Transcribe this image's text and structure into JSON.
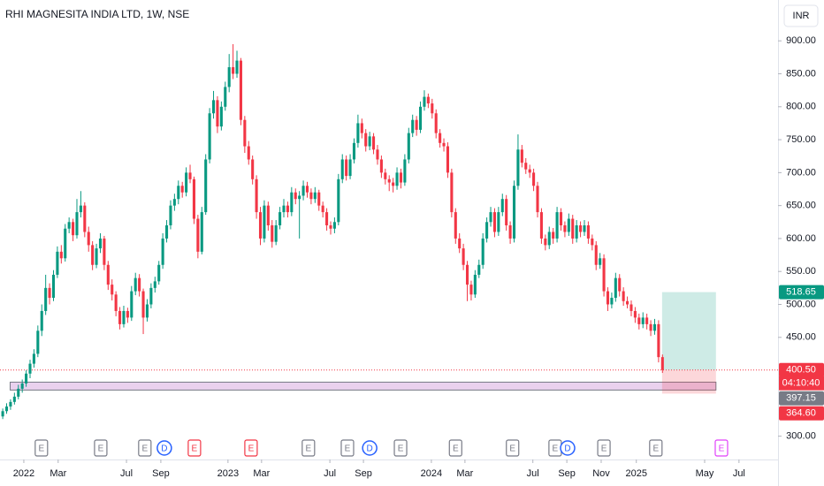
{
  "chart_data": {
    "type": "candlestick",
    "title": "RHI MAGNESITA INDIA LTD, 1W, NSE",
    "currency": "INR",
    "up_color": "#089981",
    "down_color": "#f23645",
    "grid": false,
    "ylim": [
      270,
      962
    ],
    "yticks": [
      {
        "value": 300,
        "label": "300.00"
      },
      {
        "value": 450,
        "label": "450.00"
      },
      {
        "value": 500,
        "label": "500.00"
      },
      {
        "value": 550,
        "label": "550.00"
      },
      {
        "value": 600,
        "label": "600.00"
      },
      {
        "value": 650,
        "label": "650.00"
      },
      {
        "value": 700,
        "label": "700.00"
      },
      {
        "value": 750,
        "label": "750.00"
      },
      {
        "value": 800,
        "label": "800.00"
      },
      {
        "value": 850,
        "label": "850.00"
      },
      {
        "value": 900,
        "label": "900.00"
      }
    ],
    "xlim": [
      -0.7,
      198.6
    ],
    "xticks": [
      {
        "value": 5.4,
        "label": "2022"
      },
      {
        "value": 14.2,
        "label": "Mar"
      },
      {
        "value": 31.7,
        "label": "Jul"
      },
      {
        "value": 40.5,
        "label": "Sep"
      },
      {
        "value": 57.7,
        "label": "2023"
      },
      {
        "value": 66.3,
        "label": "Mar"
      },
      {
        "value": 83.8,
        "label": "Jul"
      },
      {
        "value": 92.4,
        "label": "Sep"
      },
      {
        "value": 109.8,
        "label": "2024"
      },
      {
        "value": 118.4,
        "label": "Mar"
      },
      {
        "value": 135.8,
        "label": "Jul"
      },
      {
        "value": 144.5,
        "label": "Sep"
      },
      {
        "value": 153.3,
        "label": "Nov"
      },
      {
        "value": 162.3,
        "label": "2025"
      },
      {
        "value": 179.8,
        "label": "May"
      },
      {
        "value": 188.6,
        "label": "Jul"
      }
    ],
    "candles": [
      [
        330,
        342,
        326,
        338
      ],
      [
        338,
        350,
        334,
        345
      ],
      [
        345,
        356,
        340,
        352
      ],
      [
        352,
        366,
        348,
        360
      ],
      [
        360,
        378,
        356,
        372
      ],
      [
        372,
        386,
        366,
        380
      ],
      [
        380,
        400,
        375,
        395
      ],
      [
        395,
        416,
        388,
        410
      ],
      [
        410,
        432,
        404,
        425
      ],
      [
        425,
        468,
        420,
        460
      ],
      [
        460,
        500,
        452,
        490
      ],
      [
        490,
        545,
        484,
        525
      ],
      [
        525,
        532,
        500,
        510
      ],
      [
        510,
        552,
        505,
        545
      ],
      [
        545,
        588,
        540,
        580
      ],
      [
        580,
        590,
        562,
        570
      ],
      [
        570,
        622,
        565,
        615
      ],
      [
        615,
        632,
        608,
        625
      ],
      [
        625,
        630,
        596,
        605
      ],
      [
        605,
        660,
        600,
        640
      ],
      [
        640,
        672,
        632,
        650
      ],
      [
        650,
        655,
        602,
        610
      ],
      [
        610,
        618,
        580,
        590
      ],
      [
        590,
        596,
        552,
        560
      ],
      [
        560,
        592,
        555,
        585
      ],
      [
        585,
        608,
        578,
        600
      ],
      [
        600,
        604,
        552,
        560
      ],
      [
        560,
        566,
        522,
        530
      ],
      [
        530,
        538,
        506,
        515
      ],
      [
        515,
        520,
        482,
        490
      ],
      [
        490,
        496,
        462,
        470
      ],
      [
        470,
        498,
        465,
        490
      ],
      [
        490,
        495,
        472,
        480
      ],
      [
        480,
        528,
        475,
        520
      ],
      [
        520,
        548,
        514,
        540
      ],
      [
        540,
        546,
        512,
        520
      ],
      [
        520,
        524,
        455,
        480
      ],
      [
        480,
        508,
        474,
        500
      ],
      [
        500,
        532,
        494,
        525
      ],
      [
        525,
        542,
        518,
        535
      ],
      [
        535,
        566,
        530,
        560
      ],
      [
        560,
        608,
        554,
        600
      ],
      [
        600,
        628,
        594,
        620
      ],
      [
        620,
        658,
        614,
        650
      ],
      [
        650,
        668,
        642,
        660
      ],
      [
        660,
        688,
        652,
        680
      ],
      [
        680,
        686,
        662,
        670
      ],
      [
        670,
        708,
        664,
        700
      ],
      [
        700,
        712,
        684,
        690
      ],
      [
        690,
        694,
        622,
        630
      ],
      [
        630,
        636,
        570,
        580
      ],
      [
        580,
        648,
        576,
        640
      ],
      [
        640,
        728,
        636,
        720
      ],
      [
        720,
        798,
        714,
        790
      ],
      [
        790,
        824,
        782,
        810
      ],
      [
        810,
        816,
        760,
        770
      ],
      [
        770,
        808,
        764,
        800
      ],
      [
        800,
        838,
        794,
        830
      ],
      [
        830,
        880,
        822,
        860
      ],
      [
        860,
        895,
        842,
        850
      ],
      [
        850,
        885,
        844,
        870
      ],
      [
        870,
        874,
        772,
        780
      ],
      [
        780,
        786,
        730,
        740
      ],
      [
        740,
        748,
        712,
        720
      ],
      [
        720,
        726,
        682,
        690
      ],
      [
        690,
        696,
        630,
        640
      ],
      [
        640,
        648,
        590,
        600
      ],
      [
        600,
        658,
        594,
        650
      ],
      [
        650,
        656,
        612,
        620
      ],
      [
        620,
        628,
        586,
        595
      ],
      [
        595,
        628,
        590,
        620
      ],
      [
        620,
        648,
        614,
        640
      ],
      [
        640,
        660,
        632,
        650
      ],
      [
        650,
        656,
        632,
        640
      ],
      [
        640,
        678,
        634,
        670
      ],
      [
        670,
        676,
        652,
        660
      ],
      [
        660,
        672,
        600,
        665
      ],
      [
        665,
        688,
        658,
        680
      ],
      [
        680,
        686,
        662,
        670
      ],
      [
        670,
        676,
        652,
        660
      ],
      [
        660,
        678,
        654,
        670
      ],
      [
        670,
        674,
        642,
        650
      ],
      [
        650,
        656,
        632,
        640
      ],
      [
        640,
        646,
        612,
        620
      ],
      [
        620,
        626,
        606,
        615
      ],
      [
        615,
        632,
        608,
        625
      ],
      [
        625,
        698,
        620,
        690
      ],
      [
        690,
        728,
        684,
        720
      ],
      [
        720,
        726,
        688,
        695
      ],
      [
        695,
        728,
        690,
        720
      ],
      [
        720,
        752,
        714,
        745
      ],
      [
        745,
        788,
        738,
        775
      ],
      [
        775,
        782,
        752,
        760
      ],
      [
        760,
        766,
        732,
        740
      ],
      [
        740,
        762,
        734,
        755
      ],
      [
        755,
        760,
        728,
        735
      ],
      [
        735,
        742,
        712,
        720
      ],
      [
        720,
        726,
        692,
        700
      ],
      [
        700,
        706,
        682,
        690
      ],
      [
        690,
        696,
        672,
        685
      ],
      [
        685,
        692,
        670,
        680
      ],
      [
        680,
        708,
        674,
        700
      ],
      [
        700,
        706,
        676,
        685
      ],
      [
        685,
        728,
        680,
        720
      ],
      [
        720,
        768,
        714,
        760
      ],
      [
        760,
        788,
        754,
        780
      ],
      [
        780,
        786,
        756,
        765
      ],
      [
        765,
        808,
        760,
        800
      ],
      [
        800,
        825,
        794,
        815
      ],
      [
        815,
        820,
        798,
        805
      ],
      [
        805,
        812,
        782,
        790
      ],
      [
        790,
        796,
        752,
        760
      ],
      [
        760,
        766,
        738,
        745
      ],
      [
        745,
        752,
        732,
        740
      ],
      [
        740,
        746,
        692,
        700
      ],
      [
        700,
        706,
        632,
        640
      ],
      [
        640,
        646,
        592,
        600
      ],
      [
        600,
        608,
        578,
        585
      ],
      [
        585,
        592,
        552,
        560
      ],
      [
        560,
        566,
        505,
        530
      ],
      [
        530,
        536,
        506,
        515
      ],
      [
        515,
        552,
        510,
        545
      ],
      [
        545,
        568,
        540,
        560
      ],
      [
        560,
        608,
        554,
        600
      ],
      [
        600,
        632,
        594,
        625
      ],
      [
        625,
        648,
        618,
        640
      ],
      [
        640,
        646,
        602,
        610
      ],
      [
        610,
        648,
        604,
        640
      ],
      [
        640,
        668,
        634,
        660
      ],
      [
        660,
        666,
        612,
        620
      ],
      [
        620,
        626,
        592,
        600
      ],
      [
        600,
        688,
        594,
        680
      ],
      [
        680,
        758,
        674,
        735
      ],
      [
        735,
        742,
        708,
        715
      ],
      [
        715,
        722,
        698,
        705
      ],
      [
        705,
        712,
        692,
        700
      ],
      [
        700,
        706,
        672,
        680
      ],
      [
        680,
        686,
        632,
        640
      ],
      [
        640,
        646,
        592,
        600
      ],
      [
        600,
        606,
        582,
        590
      ],
      [
        590,
        618,
        584,
        610
      ],
      [
        610,
        616,
        592,
        600
      ],
      [
        600,
        648,
        594,
        640
      ],
      [
        640,
        646,
        612,
        620
      ],
      [
        620,
        626,
        602,
        610
      ],
      [
        610,
        638,
        604,
        630
      ],
      [
        630,
        636,
        592,
        600
      ],
      [
        600,
        628,
        594,
        620
      ],
      [
        620,
        626,
        602,
        610
      ],
      [
        610,
        628,
        604,
        620
      ],
      [
        620,
        626,
        592,
        600
      ],
      [
        600,
        606,
        582,
        590
      ],
      [
        590,
        596,
        552,
        560
      ],
      [
        560,
        578,
        554,
        570
      ],
      [
        570,
        576,
        512,
        520
      ],
      [
        520,
        526,
        490,
        500
      ],
      [
        500,
        518,
        494,
        510
      ],
      [
        510,
        548,
        504,
        540
      ],
      [
        540,
        546,
        512,
        520
      ],
      [
        520,
        526,
        498,
        505
      ],
      [
        505,
        512,
        494,
        500
      ],
      [
        500,
        506,
        482,
        490
      ],
      [
        490,
        496,
        472,
        480
      ],
      [
        480,
        486,
        462,
        470
      ],
      [
        470,
        488,
        464,
        480
      ],
      [
        480,
        486,
        462,
        470
      ],
      [
        470,
        476,
        452,
        460
      ],
      [
        460,
        478,
        454,
        470
      ],
      [
        470,
        476,
        412,
        420
      ],
      [
        420,
        424,
        396,
        400.5
      ]
    ],
    "last_price": {
      "value": 400.5,
      "label": "400.50"
    },
    "countdown": "04:10:40",
    "marker_price": {
      "value": 397.15,
      "label": "397.15"
    },
    "position": {
      "start": 168.9,
      "end": 182.7,
      "target": {
        "value": 518.65,
        "label": "518.65"
      },
      "entry": {
        "value": 400.5
      },
      "stop": {
        "value": 364.6,
        "label": "364.60"
      }
    },
    "zone": {
      "start": 1.9,
      "end": 182.7,
      "low": 370,
      "high": 382,
      "color": "#e1bee7"
    },
    "events": [
      {
        "label": "E",
        "x": 9.9,
        "color": "#787b86"
      },
      {
        "label": "E",
        "x": 25.1,
        "color": "#787b86"
      },
      {
        "label": "E",
        "x": 36.4,
        "color": "#787b86"
      },
      {
        "label": "D",
        "x": 41.4,
        "color": "#2962ff"
      },
      {
        "label": "E",
        "x": 49.1,
        "color": "#f23645"
      },
      {
        "label": "E",
        "x": 63.6,
        "color": "#f23645"
      },
      {
        "label": "E",
        "x": 78.3,
        "color": "#787b86"
      },
      {
        "label": "E",
        "x": 88.3,
        "color": "#787b86"
      },
      {
        "label": "D",
        "x": 94,
        "color": "#2962ff"
      },
      {
        "label": "E",
        "x": 101.9,
        "color": "#787b86"
      },
      {
        "label": "E",
        "x": 116,
        "color": "#787b86"
      },
      {
        "label": "E",
        "x": 130.6,
        "color": "#787b86"
      },
      {
        "label": "E",
        "x": 141.5,
        "color": "#787b86"
      },
      {
        "label": "D",
        "x": 144.7,
        "color": "#2962ff"
      },
      {
        "label": "E",
        "x": 154,
        "color": "#787b86"
      },
      {
        "label": "E",
        "x": 167.3,
        "color": "#787b86"
      },
      {
        "label": "E",
        "x": 184.1,
        "color": "#e040fb"
      }
    ]
  }
}
